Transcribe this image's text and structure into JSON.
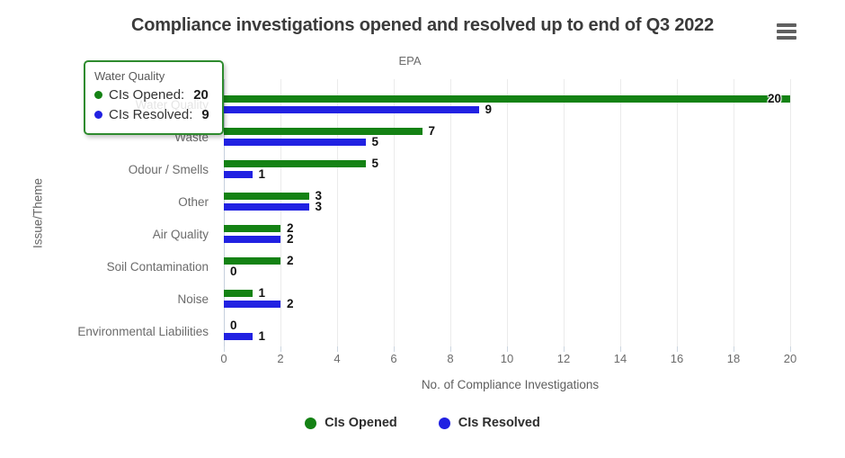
{
  "header": {
    "title": "Compliance investigations opened and resolved up to end of Q3 2022",
    "subtitle": "EPA",
    "menu_icon": "hamburger-icon"
  },
  "colors": {
    "opened": "#148214",
    "resolved": "#2121e2",
    "tooltip_border": "#2e8b2e",
    "grid": "#ebebeb",
    "axis_zero_line": "#c6d0dd",
    "title_text": "#3b3b3b",
    "axis_text": "#6b6b6b"
  },
  "chart_data": {
    "type": "bar",
    "orientation": "horizontal",
    "title": "Compliance investigations opened and resolved up to end of Q3 2022",
    "subtitle": "EPA",
    "xlabel": "No. of Compliance Investigations",
    "ylabel": "Issue/Theme",
    "xlim": [
      0,
      20
    ],
    "xticks": [
      0,
      2,
      4,
      6,
      8,
      10,
      12,
      14,
      16,
      18,
      20
    ],
    "grid": true,
    "legend_position": "bottom",
    "categories": [
      "Water Quality",
      "Waste",
      "Odour / Smells",
      "Other",
      "Air Quality",
      "Soil Contamination",
      "Noise",
      "Environmental Liabilities"
    ],
    "series": [
      {
        "name": "CIs Opened",
        "color": "#148214",
        "values": [
          20,
          7,
          5,
          3,
          2,
          2,
          1,
          0
        ]
      },
      {
        "name": "CIs Resolved",
        "color": "#2121e2",
        "values": [
          9,
          5,
          1,
          3,
          2,
          0,
          2,
          1
        ]
      }
    ]
  },
  "legend": {
    "items": [
      {
        "label": "CIs Opened",
        "color": "#148214"
      },
      {
        "label": "CIs Resolved",
        "color": "#2121e2"
      }
    ]
  },
  "tooltip": {
    "category": "Water Quality",
    "rows": [
      {
        "label": "CIs Opened:",
        "value": "20",
        "color": "#148214"
      },
      {
        "label": "CIs Resolved:",
        "value": "9",
        "color": "#2121e2"
      }
    ]
  }
}
